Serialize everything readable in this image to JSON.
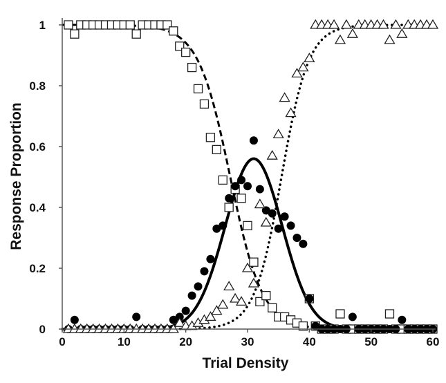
{
  "chart_data": {
    "type": "scatter",
    "title": "",
    "xlabel": "Trial Density",
    "ylabel": "Response Proportion",
    "xlim": [
      0,
      60
    ],
    "ylim": [
      0,
      1
    ],
    "x_ticks": [
      "0",
      "10",
      "20",
      "30",
      "40",
      "50",
      "60"
    ],
    "y_ticks": [
      "0",
      "0.2",
      "0.4",
      "0.6",
      "0.8",
      "1"
    ],
    "grid": false,
    "legend": "none",
    "series": [
      {
        "marker": "square",
        "x": [
          1,
          2,
          3,
          4,
          5,
          6,
          7,
          8,
          9,
          10,
          11,
          12,
          13,
          14,
          15,
          16,
          17,
          18,
          19,
          20,
          21,
          22,
          23,
          24,
          25,
          26,
          27,
          28,
          29,
          30,
          31,
          32,
          33,
          34,
          35,
          36,
          37,
          38,
          39,
          40,
          41,
          42,
          43,
          44,
          45,
          46,
          47,
          48,
          49,
          50,
          51,
          52,
          53,
          54,
          55,
          56,
          57,
          58,
          59,
          60
        ],
        "y": [
          1,
          0.97,
          1,
          1,
          1,
          1,
          1,
          1,
          1,
          1,
          1,
          0.97,
          1,
          1,
          1,
          1,
          1,
          0.98,
          0.93,
          0.91,
          0.86,
          0.79,
          0.74,
          0.63,
          0.59,
          0.49,
          0.4,
          0.46,
          0.43,
          0.34,
          0.22,
          0.09,
          0.11,
          0.07,
          0.04,
          0.04,
          0.03,
          0.02,
          0.01,
          0.1,
          0.01,
          0,
          0,
          0,
          0.05,
          0,
          0,
          0,
          0,
          0,
          0,
          0,
          0.05,
          0,
          0,
          0,
          0,
          0,
          0,
          0
        ]
      },
      {
        "marker": "circle",
        "x": [
          1,
          2,
          3,
          4,
          5,
          6,
          7,
          8,
          9,
          10,
          11,
          12,
          13,
          14,
          15,
          16,
          17,
          18,
          19,
          20,
          21,
          22,
          23,
          24,
          25,
          26,
          27,
          28,
          29,
          30,
          31,
          32,
          33,
          34,
          35,
          36,
          37,
          38,
          39,
          40,
          41,
          42,
          43,
          44,
          45,
          46,
          47,
          48,
          49,
          50,
          51,
          52,
          53,
          54,
          55,
          56,
          57,
          58,
          59,
          60
        ],
        "y": [
          0,
          0.03,
          0,
          0,
          0,
          0,
          0,
          0,
          0,
          0,
          0,
          0.04,
          0,
          0,
          0,
          0,
          0,
          0.03,
          0.04,
          0.06,
          0.11,
          0.14,
          0.19,
          0.23,
          0.33,
          0.34,
          0.43,
          0.47,
          0.49,
          0.47,
          0.62,
          0.46,
          0.39,
          0.38,
          0.33,
          0.37,
          0.34,
          0.3,
          0.28,
          0.1,
          0.01,
          0,
          0,
          0,
          0,
          0,
          0.04,
          0,
          0,
          0,
          0,
          0,
          0,
          0,
          0.03,
          0,
          0,
          0,
          0,
          0
        ]
      },
      {
        "marker": "triangle",
        "x": [
          1,
          2,
          3,
          4,
          5,
          6,
          7,
          8,
          9,
          10,
          11,
          12,
          13,
          14,
          15,
          16,
          17,
          18,
          19,
          20,
          21,
          22,
          23,
          24,
          25,
          26,
          27,
          28,
          29,
          30,
          31,
          32,
          33,
          34,
          35,
          36,
          37,
          38,
          39,
          40,
          41,
          42,
          43,
          44,
          45,
          46,
          47,
          48,
          49,
          50,
          51,
          52,
          53,
          54,
          55,
          56,
          57,
          58,
          59,
          60
        ],
        "y": [
          0,
          0,
          0,
          0,
          0,
          0,
          0,
          0,
          0,
          0,
          0,
          0,
          0,
          0,
          0,
          0,
          0,
          0,
          0.02,
          0.01,
          0.01,
          0.02,
          0.03,
          0.04,
          0.06,
          0.08,
          0.14,
          0.1,
          0.09,
          0.2,
          0.15,
          0.41,
          0.35,
          0.57,
          0.64,
          0.76,
          0.71,
          0.84,
          0.86,
          0.89,
          1,
          1,
          1,
          1,
          0.95,
          1,
          0.97,
          1,
          1,
          1,
          1,
          1,
          0.95,
          1,
          0.97,
          1,
          1,
          1,
          1,
          1
        ]
      }
    ],
    "fitted_curves": [
      {
        "style": "dashed",
        "for": "square",
        "shape": "descending logistic",
        "midpoint": 27.2,
        "scale": 2.6
      },
      {
        "style": "solid",
        "for": "circle",
        "shape": "bell",
        "peak": 0.56,
        "center": 31,
        "sd": 4.6
      },
      {
        "style": "dotted",
        "for": "triangle",
        "shape": "ascending logistic",
        "midpoint": 35.5,
        "scale": 2.2
      }
    ]
  }
}
